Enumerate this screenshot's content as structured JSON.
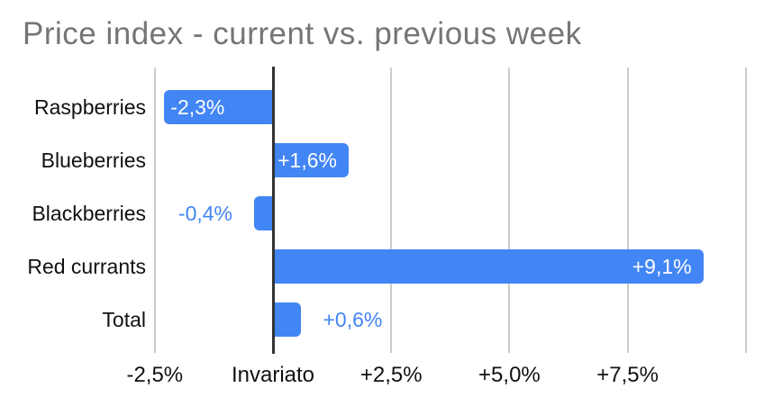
{
  "chart_data": {
    "type": "bar",
    "orientation": "horizontal",
    "title": "Price index - current vs. previous week",
    "categories": [
      "Raspberries",
      "Blueberries",
      "Blackberries",
      "Red currants",
      "Total"
    ],
    "values": [
      -2.3,
      1.6,
      -0.4,
      9.1,
      0.6
    ],
    "value_labels": [
      "-2,3%",
      "+1,6%",
      "-0,4%",
      "+9,1%",
      "+0,6%"
    ],
    "xlabel": "",
    "ylabel": "",
    "xlim": [
      -2.5,
      10
    ],
    "grid": true,
    "legend": "none",
    "xticks": [
      {
        "value": -2.5,
        "label": "-2,5%"
      },
      {
        "value": 0,
        "label": "Invariato"
      },
      {
        "value": 2.5,
        "label": "+2,5%"
      },
      {
        "value": 5,
        "label": "+5,0%"
      },
      {
        "value": 7.5,
        "label": "+7,5%"
      },
      {
        "value": 10,
        "label": ""
      }
    ]
  },
  "colors": {
    "bar": "#4285f4",
    "label_inside": "#ffffff",
    "label_outside": "#4285f4",
    "title": "#757575",
    "axis_text": "#111111",
    "gridline": "#cccccc",
    "zero_axis": "#333333",
    "background": "#ffffff"
  }
}
